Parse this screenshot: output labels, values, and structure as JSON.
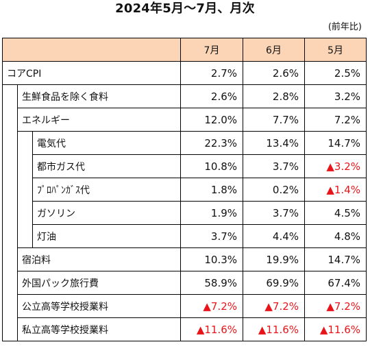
{
  "title": "2024年5月～7月、月次",
  "unit": "(前年比)",
  "columns": [
    "7月",
    "6月",
    "5月"
  ],
  "rows": [
    {
      "label": "コアCPI",
      "level": 0,
      "values": [
        "2.7%",
        "2.6%",
        "2.5%"
      ],
      "negative": [
        false,
        false,
        false
      ]
    },
    {
      "label": "生鮮食品を除く食料",
      "level": 1,
      "values": [
        "2.6%",
        "2.8%",
        "3.2%"
      ],
      "negative": [
        false,
        false,
        false
      ]
    },
    {
      "label": "エネルギー",
      "level": 1,
      "values": [
        "12.0%",
        "7.7%",
        "7.2%"
      ],
      "negative": [
        false,
        false,
        false
      ]
    },
    {
      "label": "電気代",
      "level": 2,
      "values": [
        "22.3%",
        "13.4%",
        "14.7%"
      ],
      "negative": [
        false,
        false,
        false
      ]
    },
    {
      "label": "都市ガス代",
      "level": 2,
      "values": [
        "10.8%",
        "3.7%",
        "▲3.2%"
      ],
      "negative": [
        false,
        false,
        true
      ]
    },
    {
      "label": "ﾌﾟﾛﾊﾟﾝｶﾞｽ代",
      "level": 2,
      "values": [
        "1.8%",
        "0.2%",
        "▲1.4%"
      ],
      "negative": [
        false,
        false,
        true
      ]
    },
    {
      "label": "ガソリン",
      "level": 2,
      "values": [
        "1.9%",
        "3.7%",
        "4.5%"
      ],
      "negative": [
        false,
        false,
        false
      ]
    },
    {
      "label": "灯油",
      "level": 2,
      "values": [
        "3.7%",
        "4.4%",
        "4.8%"
      ],
      "negative": [
        false,
        false,
        false
      ]
    },
    {
      "label": "宿泊料",
      "level": 1,
      "values": [
        "10.3%",
        "19.9%",
        "14.7%"
      ],
      "negative": [
        false,
        false,
        false
      ]
    },
    {
      "label": "外国パック旅行費",
      "level": 1,
      "values": [
        "58.9%",
        "69.9%",
        "67.4%"
      ],
      "negative": [
        false,
        false,
        false
      ]
    },
    {
      "label": "公立高等学校授業料",
      "level": 1,
      "values": [
        "▲7.2%",
        "▲7.2%",
        "▲7.2%"
      ],
      "negative": [
        true,
        true,
        true
      ]
    },
    {
      "label": "私立高等学校授業料",
      "level": 1,
      "values": [
        "▲11.6%",
        "▲11.6%",
        "▲11.6%"
      ],
      "negative": [
        true,
        true,
        true
      ]
    }
  ],
  "colors": {
    "header_bg": "#fbd5b5",
    "negative": "#e8141a",
    "border": "#000000"
  }
}
